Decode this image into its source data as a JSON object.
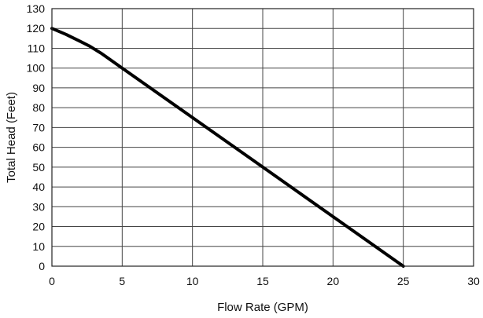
{
  "chart_data": {
    "type": "line",
    "title": "",
    "xlabel": "Flow Rate (GPM)",
    "ylabel": "Total Head (Feet)",
    "xlim": [
      0,
      30
    ],
    "ylim": [
      0,
      130
    ],
    "x_ticks": [
      0,
      5,
      10,
      15,
      20,
      25,
      30
    ],
    "y_ticks": [
      0,
      10,
      20,
      30,
      40,
      50,
      60,
      70,
      80,
      90,
      100,
      110,
      120,
      130
    ],
    "grid": true,
    "legend": "none",
    "series": [
      {
        "color": "#000000",
        "x": [
          0,
          1,
          2,
          2.7,
          3.5,
          5,
          10,
          15,
          20,
          25
        ],
        "y": [
          120,
          117,
          113.5,
          111,
          107.5,
          100,
          75,
          50,
          25,
          0
        ]
      }
    ]
  }
}
